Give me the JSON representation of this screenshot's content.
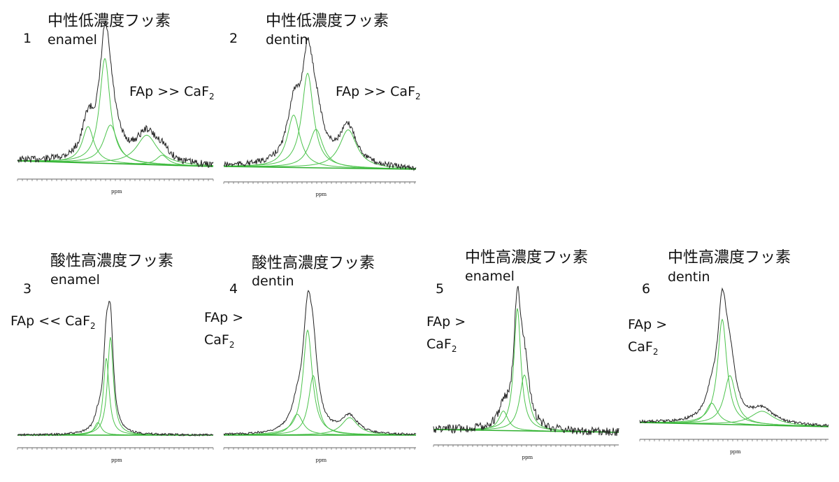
{
  "panels": [
    {
      "number": "1",
      "title": "中性低濃度フッ素",
      "sample": "enamel",
      "annotation": {
        "lines": [
          "FAp >> CaF"
        ],
        "subscript": "2"
      },
      "axis_label": "ppm"
    },
    {
      "number": "2",
      "title": "中性低濃度フッ素",
      "sample": "dentin",
      "annotation": {
        "lines": [
          "FAp >> CaF"
        ],
        "subscript": "2"
      },
      "axis_label": "ppm"
    },
    {
      "number": "3",
      "title": "酸性高濃度フッ素",
      "sample": "enamel",
      "annotation": {
        "lines": [
          "FAp << CaF"
        ],
        "subscript": "2"
      },
      "axis_label": "ppm"
    },
    {
      "number": "4",
      "title": "酸性高濃度フッ素",
      "sample": "dentin",
      "annotation": {
        "lines": [
          "FAp >",
          "CaF"
        ],
        "subscript": "2"
      },
      "axis_label": "ppm"
    },
    {
      "number": "5",
      "title": "中性高濃度フッ素",
      "sample": "enamel",
      "annotation": {
        "lines": [
          "FAp >",
          "CaF"
        ],
        "subscript": "2"
      },
      "axis_label": "ppm"
    },
    {
      "number": "6",
      "title": "中性高濃度フッ素",
      "sample": "dentin",
      "annotation": {
        "lines": [
          "FAp >",
          "CaF"
        ],
        "subscript": "2"
      },
      "axis_label": "ppm"
    }
  ]
}
